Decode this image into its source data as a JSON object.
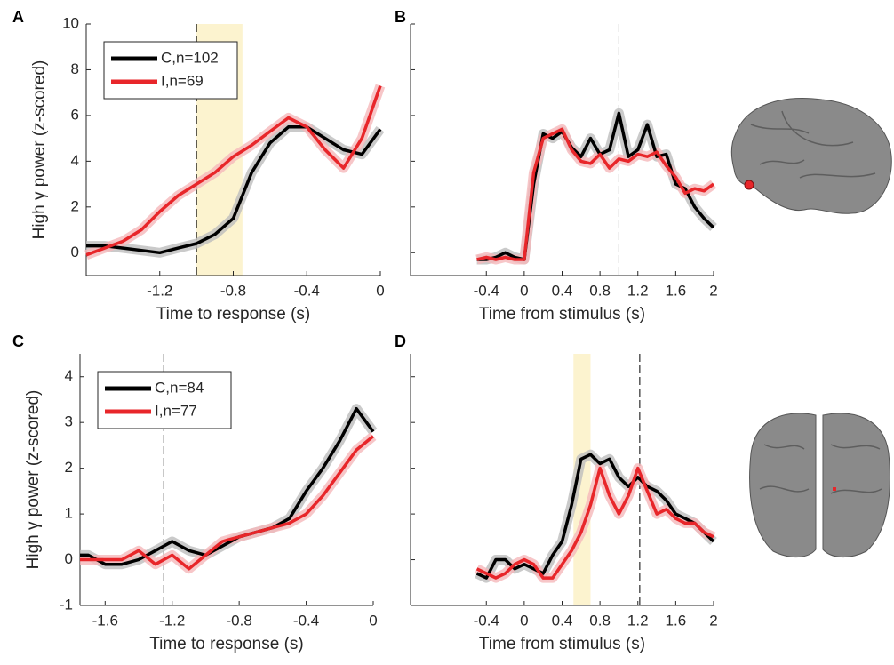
{
  "chart_data": [
    {
      "type": "line",
      "panel_label": "A",
      "xlabel": "Time to response (s)",
      "ylabel": "High γ power (z-scored)",
      "xlim": [
        -1.6,
        0
      ],
      "ylim": [
        -1,
        10
      ],
      "xticks": [
        -1.2,
        -0.8,
        -0.4,
        0
      ],
      "yticks": [
        0,
        2,
        4,
        6,
        8,
        10
      ],
      "ytick_labels": true,
      "vline": -1.0,
      "shade": [
        -1.0,
        -0.75
      ],
      "legend": "upper left",
      "x": [
        -1.6,
        -1.5,
        -1.4,
        -1.3,
        -1.2,
        -1.1,
        -1.0,
        -0.9,
        -0.8,
        -0.7,
        -0.6,
        -0.5,
        -0.4,
        -0.3,
        -0.2,
        -0.1,
        0
      ],
      "series": [
        {
          "name": "C,n=102",
          "color": "#000000",
          "values": [
            0.3,
            0.3,
            0.2,
            0.1,
            0.0,
            0.2,
            0.4,
            0.8,
            1.5,
            3.5,
            4.8,
            5.5,
            5.5,
            5.0,
            4.5,
            4.3,
            5.4
          ]
        },
        {
          "name": "I,n=69",
          "color": "#e8262a",
          "values": [
            -0.1,
            0.2,
            0.5,
            1.0,
            1.8,
            2.5,
            3.0,
            3.5,
            4.2,
            4.7,
            5.3,
            5.9,
            5.5,
            4.5,
            3.7,
            5.0,
            7.3
          ]
        }
      ]
    },
    {
      "type": "line",
      "panel_label": "B",
      "xlabel": "Time from stimulus (s)",
      "xlim": [
        -1.2,
        2
      ],
      "ylim": [
        -1,
        10
      ],
      "xticks": [
        -0.4,
        0,
        0.4,
        0.8,
        1.2,
        1.6,
        2
      ],
      "yticks": [
        0,
        2,
        4,
        6,
        8,
        10
      ],
      "ytick_labels": false,
      "vline": 1.0,
      "x": [
        -0.5,
        -0.4,
        -0.3,
        -0.2,
        -0.1,
        0,
        0.1,
        0.2,
        0.3,
        0.4,
        0.5,
        0.6,
        0.7,
        0.8,
        0.9,
        1.0,
        1.1,
        1.2,
        1.3,
        1.4,
        1.5,
        1.6,
        1.7,
        1.8,
        1.9,
        2.0
      ],
      "series": [
        {
          "color": "#000000",
          "values": [
            -0.3,
            -0.3,
            -0.2,
            0.0,
            -0.2,
            -0.3,
            3.0,
            5.2,
            5.0,
            5.3,
            4.6,
            4.2,
            5.0,
            4.3,
            4.5,
            6.1,
            4.2,
            4.5,
            5.6,
            4.2,
            4.3,
            3.0,
            2.8,
            2.0,
            1.5,
            1.1
          ]
        },
        {
          "color": "#e8262a",
          "values": [
            -0.3,
            -0.2,
            -0.3,
            -0.2,
            -0.3,
            -0.3,
            3.5,
            5.0,
            5.2,
            5.4,
            4.5,
            4.0,
            3.9,
            4.3,
            3.7,
            4.1,
            4.0,
            4.3,
            4.2,
            4.4,
            3.8,
            3.3,
            2.6,
            2.8,
            2.7,
            3.0
          ]
        }
      ]
    },
    {
      "type": "line",
      "panel_label": "C",
      "xlabel": "Time to response (s)",
      "ylabel": "High γ power (z-scored)",
      "xlim": [
        -1.75,
        0
      ],
      "ylim": [
        -1,
        4.5
      ],
      "xticks": [
        -1.6,
        -1.2,
        -0.8,
        -0.4,
        0
      ],
      "yticks": [
        -1,
        0,
        1,
        2,
        3,
        4
      ],
      "ytick_labels": true,
      "vline": -1.25,
      "legend": "upper left",
      "x": [
        -1.75,
        -1.7,
        -1.6,
        -1.5,
        -1.4,
        -1.3,
        -1.2,
        -1.1,
        -1.0,
        -0.9,
        -0.8,
        -0.7,
        -0.6,
        -0.5,
        -0.4,
        -0.3,
        -0.2,
        -0.1,
        0
      ],
      "series": [
        {
          "name": "C,n=84",
          "color": "#000000",
          "values": [
            0.1,
            0.1,
            -0.1,
            -0.1,
            0.0,
            0.2,
            0.4,
            0.2,
            0.1,
            0.3,
            0.5,
            0.6,
            0.7,
            0.9,
            1.5,
            2.0,
            2.6,
            3.3,
            2.8
          ]
        },
        {
          "name": "I,n=77",
          "color": "#e8262a",
          "values": [
            0.0,
            0.0,
            0.0,
            0.0,
            0.2,
            -0.1,
            0.1,
            -0.2,
            0.1,
            0.4,
            0.5,
            0.6,
            0.7,
            0.8,
            1.0,
            1.4,
            1.9,
            2.4,
            2.7
          ]
        }
      ]
    },
    {
      "type": "line",
      "panel_label": "D",
      "xlabel": "Time from stimulus (s)",
      "xlim": [
        -1.2,
        2
      ],
      "ylim": [
        -1,
        4.5
      ],
      "xticks": [
        -0.4,
        0,
        0.4,
        0.8,
        1.2,
        1.6,
        2
      ],
      "yticks": [
        -1,
        0,
        1,
        2,
        3,
        4
      ],
      "ytick_labels": false,
      "vline": 1.22,
      "shade": [
        0.52,
        0.7
      ],
      "x": [
        -0.5,
        -0.4,
        -0.3,
        -0.2,
        -0.1,
        0,
        0.1,
        0.2,
        0.3,
        0.4,
        0.5,
        0.6,
        0.7,
        0.8,
        0.9,
        1.0,
        1.1,
        1.2,
        1.3,
        1.4,
        1.5,
        1.6,
        1.7,
        1.8,
        1.9,
        2.0
      ],
      "series": [
        {
          "color": "#000000",
          "values": [
            -0.3,
            -0.4,
            0.0,
            0.0,
            -0.2,
            -0.1,
            -0.2,
            -0.3,
            0.1,
            0.4,
            1.2,
            2.2,
            2.3,
            2.1,
            2.2,
            1.8,
            1.6,
            1.8,
            1.6,
            1.5,
            1.3,
            1.0,
            0.9,
            0.8,
            0.6,
            0.4
          ]
        },
        {
          "color": "#e8262a",
          "values": [
            -0.2,
            -0.3,
            -0.4,
            -0.3,
            -0.1,
            0.0,
            -0.1,
            -0.4,
            -0.4,
            -0.1,
            0.2,
            0.6,
            1.2,
            2.0,
            1.4,
            1.0,
            1.4,
            2.0,
            1.5,
            1.0,
            1.1,
            0.9,
            0.8,
            0.8,
            0.6,
            0.5
          ]
        }
      ]
    }
  ]
}
